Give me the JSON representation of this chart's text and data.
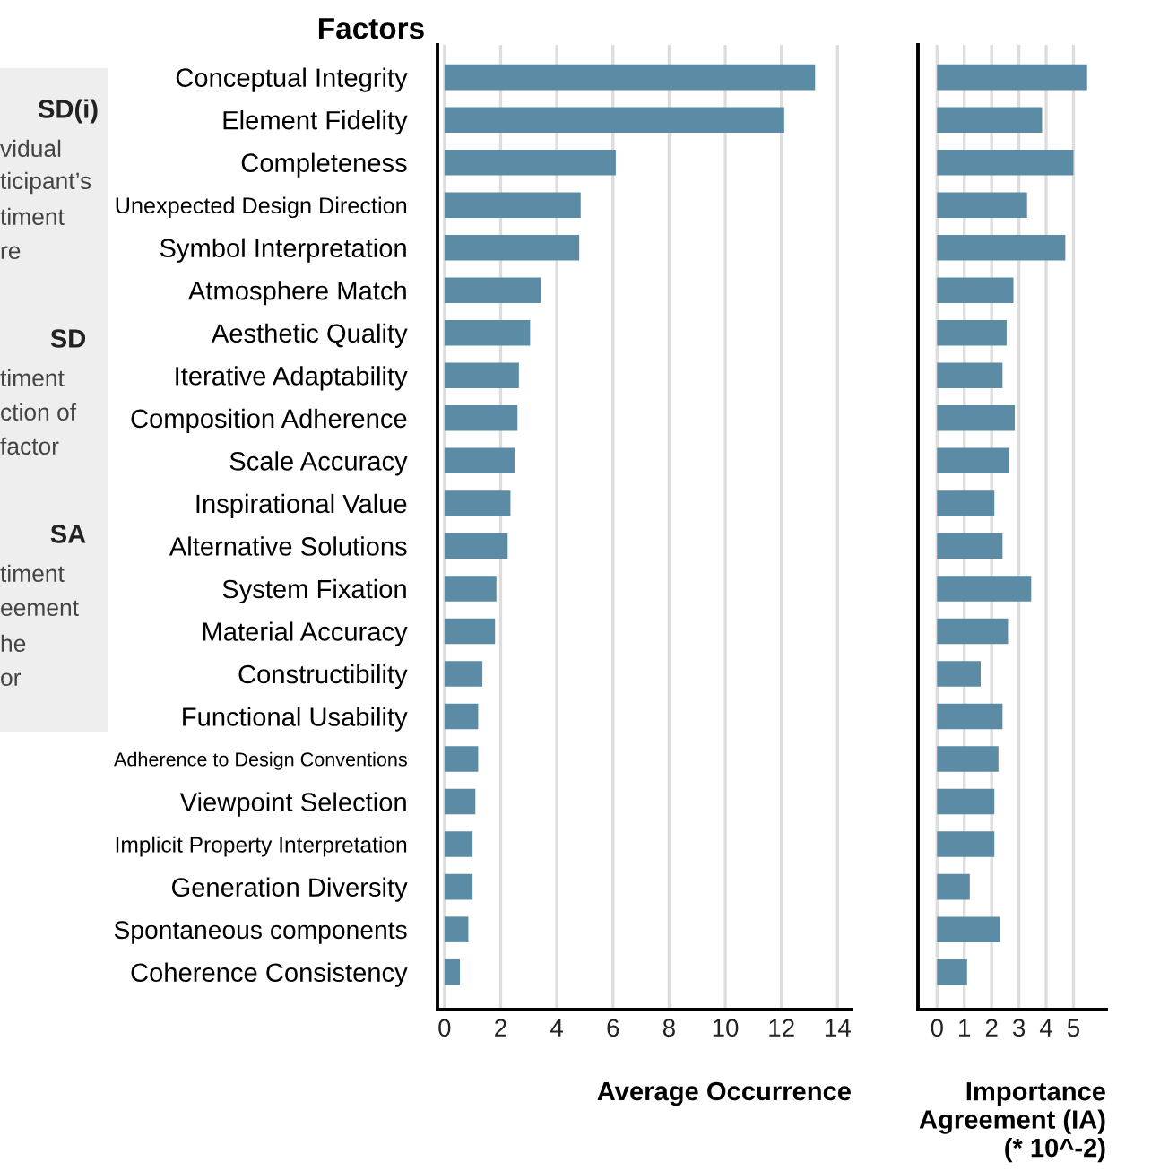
{
  "chart_data": [
    {
      "type": "other",
      "annotations": [
        "SD(i)",
        "vidual",
        "ticipant’s",
        "timent",
        "re",
        "SD",
        "timent",
        "ction of",
        "factor",
        "SA",
        "timent",
        "eement",
        "he",
        "or"
      ]
    },
    {
      "type": "bar",
      "orientation": "horizontal",
      "title": "Factors",
      "xlabel": "Average Occurrence",
      "categories": [
        "Conceptual Integrity",
        "Element Fidelity",
        "Completeness",
        "Unexpected Design Direction",
        "Symbol Interpretation",
        "Atmosphere Match",
        "Aesthetic Quality",
        "Iterative Adaptability",
        "Composition Adherence",
        "Scale Accuracy",
        "Inspirational Value",
        "Alternative Solutions",
        "System Fixation",
        "Material Accuracy",
        "Constructibility",
        "Functional Usability",
        "Adherence to Design Conventions",
        "Viewpoint Selection",
        "Implicit Property Interpretation",
        "Generation Diversity",
        "Spontaneous components",
        "Coherence Consistency"
      ],
      "values": [
        13.2,
        12.1,
        6.1,
        4.85,
        4.8,
        3.45,
        3.05,
        2.65,
        2.6,
        2.5,
        2.35,
        2.25,
        1.85,
        1.8,
        1.35,
        1.2,
        1.2,
        1.1,
        1.0,
        1.0,
        0.85,
        0.55
      ],
      "color": "#5b8ba5",
      "xlim": [
        -0.25,
        14.5
      ],
      "xticks": [
        0,
        2,
        4,
        6,
        8,
        10,
        12,
        14
      ],
      "grid": "x"
    },
    {
      "type": "bar",
      "orientation": "horizontal",
      "xlabel": "Importance\nAgreement (IA)\n(* 10^-2)",
      "tick_labels": "x",
      "categories": [
        null,
        null,
        null,
        null,
        null,
        null,
        null,
        null,
        null,
        null,
        null,
        null,
        null,
        null,
        null,
        null,
        null,
        null,
        null,
        null,
        null,
        null
      ],
      "values": [
        5.5,
        3.85,
        5.0,
        3.3,
        4.7,
        2.8,
        2.55,
        2.4,
        2.85,
        2.65,
        2.1,
        2.4,
        3.45,
        2.6,
        1.6,
        2.4,
        2.25,
        2.1,
        2.1,
        1.2,
        2.3,
        1.1
      ],
      "color": "#5b8ba5",
      "xlim": [
        -0.7,
        6.2
      ],
      "xticks": [
        0,
        1,
        2,
        3,
        4,
        5
      ],
      "grid": "x"
    }
  ]
}
